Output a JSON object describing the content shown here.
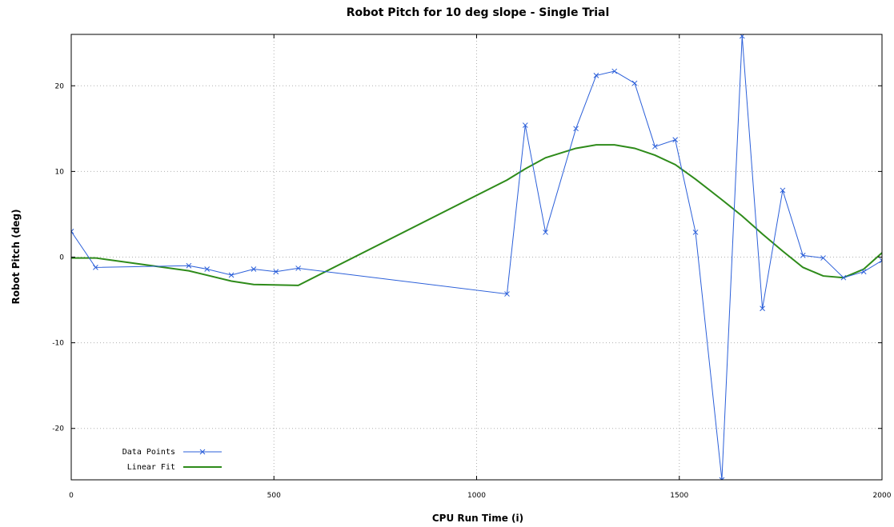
{
  "chart_data": {
    "type": "line",
    "title": "Robot Pitch for 10 deg slope - Single Trial",
    "xlabel": "CPU Run Time (i)",
    "ylabel": "Robot Pitch (deg)",
    "xlim": [
      0,
      2000
    ],
    "ylim": [
      -26,
      26
    ],
    "x_ticks": [
      0,
      500,
      1000,
      1500,
      2000
    ],
    "y_ticks": [
      -20,
      -10,
      0,
      10,
      20
    ],
    "grid": true,
    "legend_position": "bottom-left",
    "series": [
      {
        "name": "Data Points",
        "color": "#2b5fd9",
        "marker": "x",
        "points": [
          [
            0,
            3.0
          ],
          [
            60,
            -1.2
          ],
          [
            290,
            -1.0
          ],
          [
            335,
            -1.4
          ],
          [
            395,
            -2.1
          ],
          [
            450,
            -1.4
          ],
          [
            505,
            -1.7
          ],
          [
            560,
            -1.3
          ],
          [
            1075,
            -4.3
          ],
          [
            1120,
            15.4
          ],
          [
            1170,
            2.9
          ],
          [
            1245,
            15.0
          ],
          [
            1295,
            21.2
          ],
          [
            1340,
            21.7
          ],
          [
            1390,
            20.3
          ],
          [
            1440,
            12.9
          ],
          [
            1490,
            13.7
          ],
          [
            1540,
            2.9
          ],
          [
            1605,
            -26.0
          ],
          [
            1655,
            25.8
          ],
          [
            1705,
            -6.0
          ],
          [
            1755,
            7.8
          ],
          [
            1805,
            0.2
          ],
          [
            1855,
            -0.1
          ],
          [
            1905,
            -2.4
          ],
          [
            1955,
            -1.7
          ],
          [
            2000,
            -0.4
          ]
        ]
      },
      {
        "name": "Linear Fit",
        "color": "#2e8b1a",
        "marker": "none",
        "points": [
          [
            0,
            -0.1
          ],
          [
            60,
            -0.1
          ],
          [
            290,
            -1.6
          ],
          [
            395,
            -2.8
          ],
          [
            450,
            -3.2
          ],
          [
            560,
            -3.3
          ],
          [
            1075,
            9.0
          ],
          [
            1120,
            10.3
          ],
          [
            1170,
            11.6
          ],
          [
            1245,
            12.7
          ],
          [
            1295,
            13.1
          ],
          [
            1340,
            13.1
          ],
          [
            1390,
            12.7
          ],
          [
            1440,
            11.9
          ],
          [
            1490,
            10.8
          ],
          [
            1540,
            9.1
          ],
          [
            1605,
            6.7
          ],
          [
            1655,
            4.8
          ],
          [
            1705,
            2.7
          ],
          [
            1755,
            0.7
          ],
          [
            1805,
            -1.2
          ],
          [
            1855,
            -2.2
          ],
          [
            1905,
            -2.4
          ],
          [
            1955,
            -1.4
          ],
          [
            2000,
            0.5
          ]
        ]
      }
    ]
  }
}
